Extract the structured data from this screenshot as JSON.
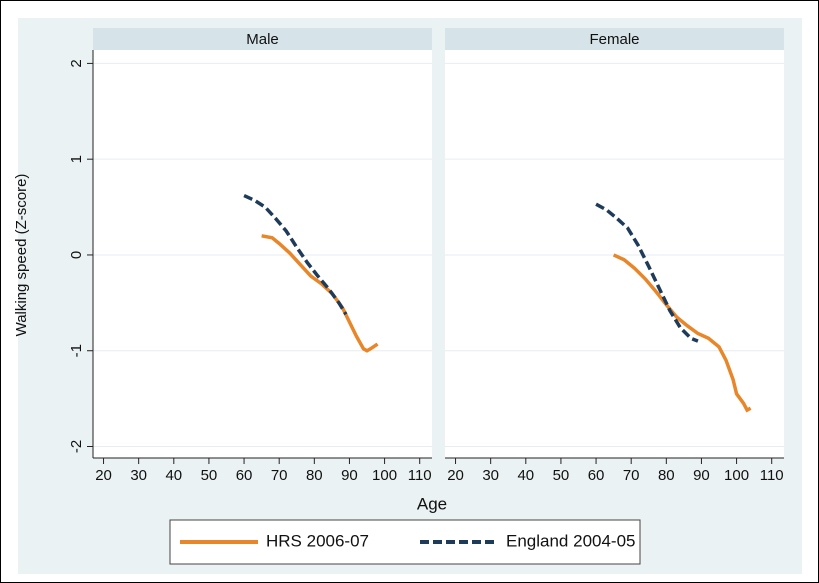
{
  "chart_data": {
    "type": "line",
    "ylabel": "Walking speed (Z-score)",
    "xlabel": "Age",
    "xlim": [
      17,
      113.5
    ],
    "ylim": [
      -2.12,
      2.14
    ],
    "xticks": [
      20,
      30,
      40,
      50,
      60,
      70,
      80,
      90,
      100,
      110
    ],
    "yticks": [
      2,
      1,
      0,
      -1,
      -2
    ],
    "grid": true,
    "legend": "bottom",
    "series": [
      {
        "name": "HRS 2006-07",
        "color": "#e8862a",
        "dashed": false
      },
      {
        "name": "England 2004-05",
        "color": "#1f3b5a",
        "dashed": true
      }
    ],
    "panels": [
      {
        "title": "Male",
        "series": [
          {
            "x": [
              65,
              68,
              70,
              73,
              76,
              79,
              82,
              85,
              88,
              90,
              92,
              94,
              95,
              96,
              98
            ],
            "values": [
              0.2,
              0.18,
              0.12,
              0.02,
              -0.1,
              -0.22,
              -0.3,
              -0.4,
              -0.55,
              -0.7,
              -0.85,
              -0.98,
              -1.0,
              -0.98,
              -0.93
            ]
          },
          {
            "x": [
              60,
              63,
              66,
              69,
              72,
              75,
              78,
              81,
              84,
              87,
              89
            ],
            "values": [
              0.62,
              0.57,
              0.5,
              0.38,
              0.25,
              0.08,
              -0.08,
              -0.22,
              -0.35,
              -0.5,
              -0.62
            ]
          }
        ]
      },
      {
        "title": "Female",
        "series": [
          {
            "x": [
              65,
              68,
              71,
              74,
              77,
              80,
              83,
              86,
              89,
              92,
              95,
              97,
              99,
              100,
              102,
              103,
              104
            ],
            "values": [
              0,
              -0.05,
              -0.14,
              -0.25,
              -0.38,
              -0.52,
              -0.65,
              -0.74,
              -0.82,
              -0.87,
              -0.96,
              -1.1,
              -1.3,
              -1.45,
              -1.55,
              -1.62,
              -1.6
            ]
          },
          {
            "x": [
              60,
              63,
              66,
              69,
              72,
              75,
              78,
              81,
              84,
              87,
              89
            ],
            "values": [
              0.53,
              0.47,
              0.38,
              0.28,
              0.1,
              -0.12,
              -0.35,
              -0.58,
              -0.76,
              -0.87,
              -0.9
            ]
          }
        ]
      }
    ]
  }
}
